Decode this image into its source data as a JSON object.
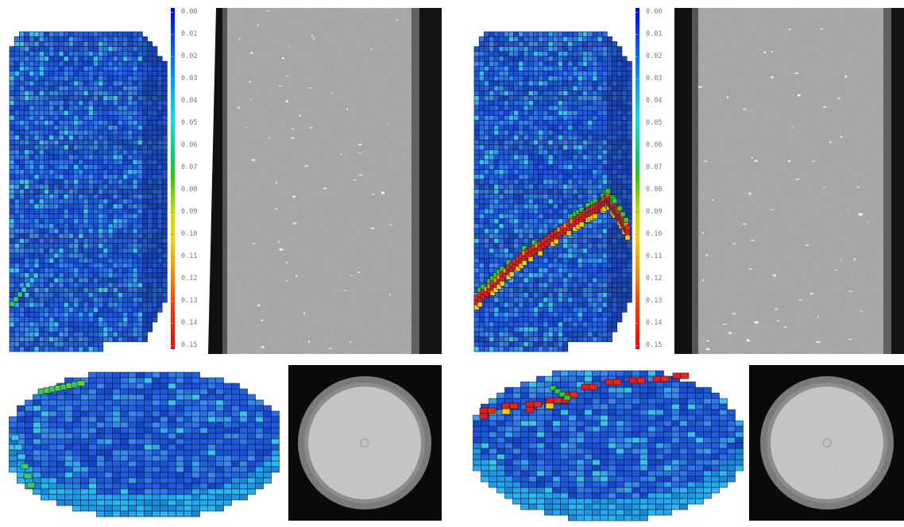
{
  "colorbar": {
    "labels": [
      "0.00",
      "0.01",
      "0.02",
      "0.03",
      "0.04",
      "0.05",
      "0.06",
      "0.07",
      "0.08",
      "0.09",
      "0.10",
      "0.11",
      "0.12",
      "0.13",
      "0.14",
      "0.15"
    ],
    "colors": [
      "#0000ff",
      "#0050ff",
      "#00a0ff",
      "#00e6e6",
      "#00cc66",
      "#33cc00",
      "#ccdd00",
      "#ffcc00",
      "#ff8800",
      "#ff3300",
      "#ff0000"
    ]
  },
  "panels": [
    {
      "id": "left-vertical",
      "crack": "minor",
      "view": "vertical-section"
    },
    {
      "id": "right-vertical",
      "crack": "major",
      "view": "vertical-section"
    },
    {
      "id": "left-horizontal",
      "crack": "minor",
      "view": "horizontal-section"
    },
    {
      "id": "right-horizontal",
      "crack": "major",
      "view": "horizontal-section"
    }
  ]
}
